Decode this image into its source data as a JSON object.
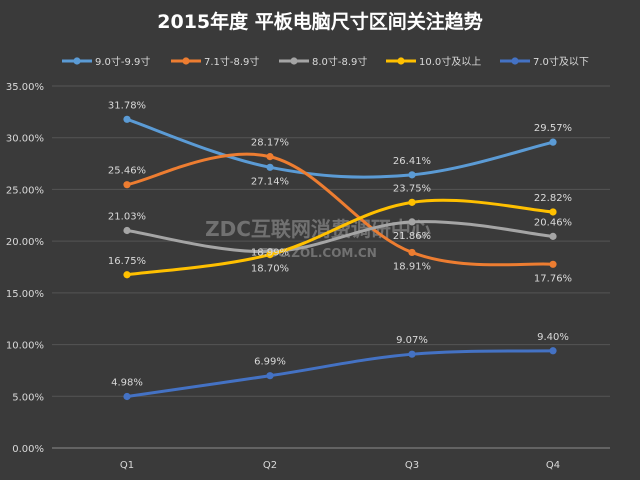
{
  "chart_data": {
    "type": "line",
    "title": "2015年度 平板电脑尺寸区间关注趋势",
    "categories": [
      "Q1",
      "Q2",
      "Q3",
      "Q4"
    ],
    "ylim": [
      0,
      35
    ],
    "yticks": [
      0,
      5,
      10,
      15,
      20,
      25,
      30,
      35
    ],
    "ytick_labels": [
      "0.00%",
      "5.00%",
      "10.00%",
      "15.00%",
      "20.00%",
      "25.00%",
      "30.00%",
      "35.00%"
    ],
    "xlabel": "",
    "ylabel": "",
    "grid": true,
    "legend_position": "top",
    "series": [
      {
        "name": "9.0寸-9.9寸",
        "color": "#5b9bd5",
        "values": [
          31.78,
          27.14,
          26.41,
          29.57
        ],
        "labels": [
          "31.78%",
          "27.14%",
          "26.41%",
          "29.57%"
        ],
        "label_pos": [
          "above",
          "below",
          "above",
          "above"
        ]
      },
      {
        "name": "7.1寸-8.9寸",
        "color": "#ed7d31",
        "values": [
          25.46,
          28.17,
          18.91,
          17.76
        ],
        "labels": [
          "25.46%",
          "28.17%",
          "18.91%",
          "17.76%"
        ],
        "label_pos": [
          "above",
          "above",
          "below",
          "below"
        ]
      },
      {
        "name": "8.0寸-8.9寸",
        "color": "#a5a5a5",
        "values": [
          21.03,
          18.99,
          21.86,
          20.46
        ],
        "labels": [
          "21.03%",
          "18.99%",
          "21.86%",
          "20.46%"
        ],
        "label_pos": [
          "above",
          "inline",
          "below",
          "above"
        ]
      },
      {
        "name": "10.0寸及以上",
        "color": "#ffc000",
        "values": [
          16.75,
          18.7,
          23.75,
          22.82
        ],
        "labels": [
          "16.75%",
          "18.70%",
          "23.75%",
          "22.82%"
        ],
        "label_pos": [
          "above",
          "below",
          "above",
          "above"
        ]
      },
      {
        "name": "7.0寸及以下",
        "color": "#4472c4",
        "values": [
          4.98,
          6.99,
          9.07,
          9.4
        ],
        "labels": [
          "4.98%",
          "6.99%",
          "9.07%",
          "9.40%"
        ],
        "label_pos": [
          "above",
          "above",
          "above",
          "above"
        ]
      }
    ]
  },
  "watermark": {
    "line1": "ZDC互联网消费调研中心",
    "line2": "ZDC.ZOL.COM.CN"
  }
}
